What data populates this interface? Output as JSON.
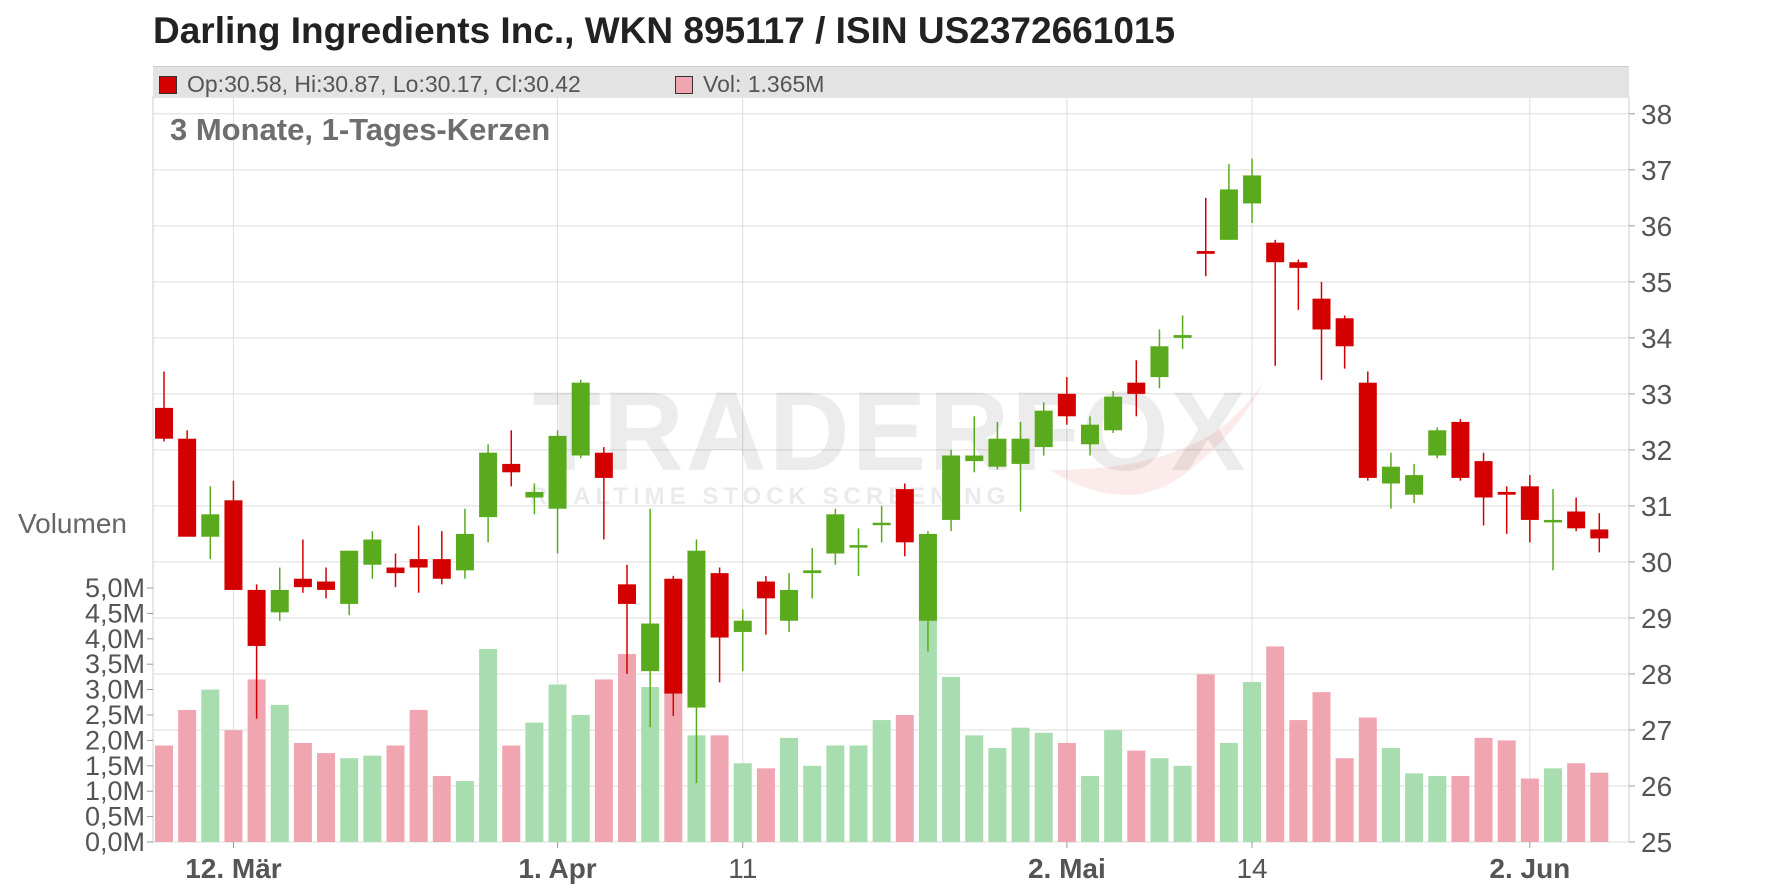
{
  "title": "Darling Ingredients Inc., WKN 895117 / ISIN US2372661015",
  "legend": {
    "ohlc": "Op:30.58, Hi:30.87, Lo:30.17, Cl:30.42",
    "volume": "Vol: 1.365M"
  },
  "subtitle": "3 Monate, 1-Tages-Kerzen",
  "volume_axis_label": "Volumen",
  "watermark": {
    "brand": "TRADERFOX",
    "tagline": "REALTIME STOCK SCREENING"
  },
  "colors": {
    "up": "#5aaa1e",
    "down": "#d40000",
    "up_volume": "#a8ddb0",
    "down_volume": "#f0a6b0",
    "grid": "#dddddd",
    "legend_background": "#e3e3e3"
  },
  "chart_data": {
    "type": "candlestick",
    "price_axis": {
      "range": [
        25,
        38.3
      ],
      "ticks": [
        25,
        26,
        27,
        28,
        29,
        30,
        31,
        32,
        33,
        34,
        35,
        36,
        37,
        38
      ],
      "position": "right"
    },
    "volume_axis": {
      "range_millions": [
        0,
        5.0
      ],
      "ticks": [
        "0,0M",
        "0,5M",
        "1,0M",
        "1,5M",
        "2,0M",
        "2,5M",
        "3,0M",
        "3,5M",
        "4,0M",
        "4,5M",
        "5,0M"
      ],
      "position": "left"
    },
    "x_labels": [
      {
        "label": "12. Mär",
        "index": 3,
        "bold": true
      },
      {
        "label": "1. Apr",
        "index": 17,
        "bold": true
      },
      {
        "label": "11",
        "index": 25,
        "bold": false
      },
      {
        "label": "2. Mai",
        "index": 39,
        "bold": true
      },
      {
        "label": "14",
        "index": 47,
        "bold": false
      },
      {
        "label": "2. Jun",
        "index": 59,
        "bold": true
      }
    ],
    "grid": true,
    "candles": [
      {
        "o": 32.75,
        "h": 33.4,
        "l": 32.15,
        "c": 32.2,
        "v": 1.9
      },
      {
        "o": 32.2,
        "h": 32.35,
        "l": 30.5,
        "c": 30.45,
        "v": 2.6
      },
      {
        "o": 30.45,
        "h": 31.35,
        "l": 30.05,
        "c": 30.85,
        "v": 3.0
      },
      {
        "o": 31.1,
        "h": 31.45,
        "l": 29.5,
        "c": 29.5,
        "v": 2.2
      },
      {
        "o": 29.5,
        "h": 29.6,
        "l": 27.2,
        "c": 28.5,
        "v": 3.2
      },
      {
        "o": 29.1,
        "h": 29.9,
        "l": 28.95,
        "c": 29.5,
        "v": 2.7
      },
      {
        "o": 29.7,
        "h": 30.4,
        "l": 29.45,
        "c": 29.55,
        "v": 1.95
      },
      {
        "o": 29.65,
        "h": 29.9,
        "l": 29.35,
        "c": 29.5,
        "v": 1.75
      },
      {
        "o": 29.25,
        "h": 30.2,
        "l": 29.05,
        "c": 30.2,
        "v": 1.65
      },
      {
        "o": 29.95,
        "h": 30.55,
        "l": 29.7,
        "c": 30.4,
        "v": 1.7
      },
      {
        "o": 29.9,
        "h": 30.15,
        "l": 29.55,
        "c": 29.8,
        "v": 1.9
      },
      {
        "o": 30.05,
        "h": 30.65,
        "l": 29.45,
        "c": 29.9,
        "v": 2.6
      },
      {
        "o": 30.05,
        "h": 30.55,
        "l": 29.6,
        "c": 29.7,
        "v": 1.3
      },
      {
        "o": 29.85,
        "h": 30.95,
        "l": 29.7,
        "c": 30.5,
        "v": 1.2
      },
      {
        "o": 30.8,
        "h": 32.1,
        "l": 30.35,
        "c": 31.95,
        "v": 3.8
      },
      {
        "o": 31.75,
        "h": 32.35,
        "l": 31.35,
        "c": 31.6,
        "v": 1.9
      },
      {
        "o": 31.15,
        "h": 31.4,
        "l": 30.85,
        "c": 31.25,
        "v": 2.35
      },
      {
        "o": 30.95,
        "h": 32.35,
        "l": 30.15,
        "c": 32.25,
        "v": 3.1
      },
      {
        "o": 31.9,
        "h": 33.25,
        "l": 31.85,
        "c": 33.2,
        "v": 2.5
      },
      {
        "o": 31.95,
        "h": 32.05,
        "l": 30.4,
        "c": 31.5,
        "v": 3.2
      },
      {
        "o": 29.6,
        "h": 29.95,
        "l": 28.0,
        "c": 29.25,
        "v": 3.7
      },
      {
        "o": 28.05,
        "h": 30.95,
        "l": 27.05,
        "c": 28.9,
        "v": 3.05
      },
      {
        "o": 29.7,
        "h": 29.75,
        "l": 27.25,
        "c": 27.65,
        "v": 2.95
      },
      {
        "o": 27.4,
        "h": 30.4,
        "l": 26.05,
        "c": 30.2,
        "v": 2.1
      },
      {
        "o": 29.8,
        "h": 29.9,
        "l": 27.85,
        "c": 28.65,
        "v": 2.1
      },
      {
        "o": 28.75,
        "h": 29.15,
        "l": 28.05,
        "c": 28.95,
        "v": 1.55
      },
      {
        "o": 29.65,
        "h": 29.75,
        "l": 28.7,
        "c": 29.35,
        "v": 1.45
      },
      {
        "o": 28.95,
        "h": 29.8,
        "l": 28.75,
        "c": 29.5,
        "v": 2.05
      },
      {
        "o": 29.8,
        "h": 30.25,
        "l": 29.35,
        "c": 29.85,
        "v": 1.5
      },
      {
        "o": 30.15,
        "h": 30.95,
        "l": 29.95,
        "c": 30.85,
        "v": 1.9
      },
      {
        "o": 30.3,
        "h": 30.6,
        "l": 29.75,
        "c": 30.3,
        "v": 1.9
      },
      {
        "o": 30.7,
        "h": 31.0,
        "l": 30.35,
        "c": 30.7,
        "v": 2.4
      },
      {
        "o": 31.3,
        "h": 31.4,
        "l": 30.1,
        "c": 30.35,
        "v": 2.5
      },
      {
        "o": 28.95,
        "h": 30.55,
        "l": 28.4,
        "c": 30.5,
        "v": 4.5
      },
      {
        "o": 30.75,
        "h": 32.0,
        "l": 30.55,
        "c": 31.9,
        "v": 3.25
      },
      {
        "o": 31.8,
        "h": 32.6,
        "l": 31.6,
        "c": 31.9,
        "v": 2.1
      },
      {
        "o": 31.7,
        "h": 32.5,
        "l": 31.65,
        "c": 32.2,
        "v": 1.85
      },
      {
        "o": 31.75,
        "h": 32.5,
        "l": 30.9,
        "c": 32.2,
        "v": 2.25
      },
      {
        "o": 32.05,
        "h": 32.85,
        "l": 31.9,
        "c": 32.7,
        "v": 2.15
      },
      {
        "o": 33.0,
        "h": 33.3,
        "l": 32.45,
        "c": 32.6,
        "v": 1.95
      },
      {
        "o": 32.1,
        "h": 32.6,
        "l": 31.9,
        "c": 32.45,
        "v": 1.3
      },
      {
        "o": 32.35,
        "h": 33.05,
        "l": 32.3,
        "c": 32.95,
        "v": 2.2
      },
      {
        "o": 33.2,
        "h": 33.6,
        "l": 32.6,
        "c": 33.0,
        "v": 1.8
      },
      {
        "o": 33.3,
        "h": 34.15,
        "l": 33.1,
        "c": 33.85,
        "v": 1.65
      },
      {
        "o": 34.0,
        "h": 34.4,
        "l": 33.8,
        "c": 34.05,
        "v": 1.5
      },
      {
        "o": 35.55,
        "h": 36.5,
        "l": 35.1,
        "c": 35.5,
        "v": 3.3
      },
      {
        "o": 35.75,
        "h": 37.1,
        "l": 35.75,
        "c": 36.65,
        "v": 1.95
      },
      {
        "o": 36.4,
        "h": 37.2,
        "l": 36.05,
        "c": 36.9,
        "v": 3.15
      },
      {
        "o": 35.7,
        "h": 35.75,
        "l": 33.5,
        "c": 35.35,
        "v": 3.85
      },
      {
        "o": 35.35,
        "h": 35.4,
        "l": 34.5,
        "c": 35.25,
        "v": 2.4
      },
      {
        "o": 34.7,
        "h": 35.0,
        "l": 33.25,
        "c": 34.15,
        "v": 2.95
      },
      {
        "o": 34.35,
        "h": 34.4,
        "l": 33.45,
        "c": 33.85,
        "v": 1.65
      },
      {
        "o": 33.2,
        "h": 33.4,
        "l": 31.45,
        "c": 31.5,
        "v": 2.45
      },
      {
        "o": 31.4,
        "h": 31.95,
        "l": 30.95,
        "c": 31.7,
        "v": 1.85
      },
      {
        "o": 31.2,
        "h": 31.75,
        "l": 31.05,
        "c": 31.55,
        "v": 1.35
      },
      {
        "o": 31.9,
        "h": 32.4,
        "l": 31.85,
        "c": 32.35,
        "v": 1.3
      },
      {
        "o": 32.5,
        "h": 32.55,
        "l": 31.45,
        "c": 31.5,
        "v": 1.3
      },
      {
        "o": 31.8,
        "h": 31.95,
        "l": 30.65,
        "c": 31.15,
        "v": 2.05
      },
      {
        "o": 31.25,
        "h": 31.35,
        "l": 30.5,
        "c": 31.2,
        "v": 2.0
      },
      {
        "o": 31.35,
        "h": 31.55,
        "l": 30.35,
        "c": 30.75,
        "v": 1.25
      },
      {
        "o": 30.75,
        "h": 31.3,
        "l": 29.85,
        "c": 30.75,
        "v": 1.45
      },
      {
        "o": 30.9,
        "h": 31.15,
        "l": 30.55,
        "c": 30.6,
        "v": 1.55
      },
      {
        "o": 30.58,
        "h": 30.87,
        "l": 30.17,
        "c": 30.42,
        "v": 1.365
      }
    ]
  }
}
